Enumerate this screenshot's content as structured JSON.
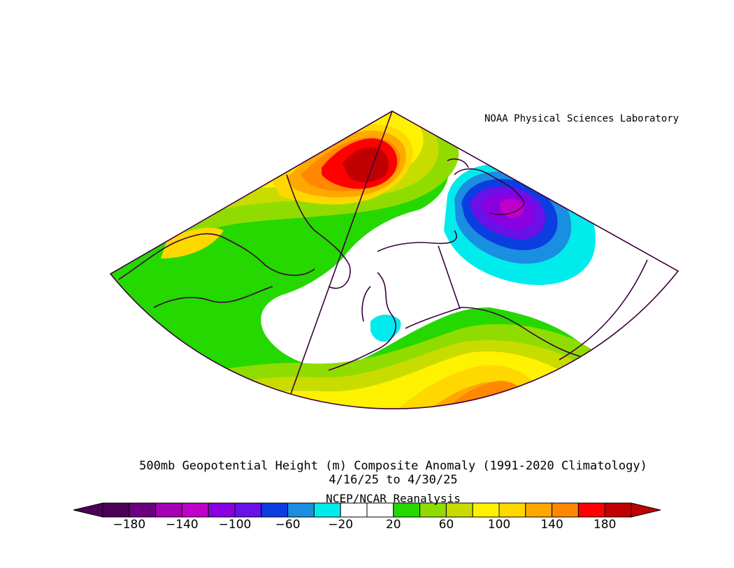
{
  "credit": "NOAA Physical Sciences Laboratory",
  "title": {
    "line1": "500mb Geopotential Height (m) Composite Anomaly (1991-2020 Climatology)",
    "line2": "4/16/25  to 4/30/25"
  },
  "source": "NCEP/NCAR Reanalysis",
  "colorbar": {
    "tick_labels": [
      "-180",
      "-140",
      "-100",
      "-60",
      "-20",
      "20",
      "60",
      "100",
      "140",
      "180"
    ],
    "colors": [
      "#4c0057",
      "#6a0080",
      "#a600b4",
      "#c000c8",
      "#8a00e0",
      "#6a10e8",
      "#0a3ee0",
      "#1a8ee0",
      "#00ecec",
      "#ffffff",
      "#ffffff",
      "#24d800",
      "#90dc00",
      "#c8dc00",
      "#fff200",
      "#ffd800",
      "#ffa800",
      "#ff8800",
      "#ff0000",
      "#c00000"
    ]
  },
  "map": {
    "anomaly_centers": [
      {
        "name": "positive-anomaly-high-north",
        "value": 180
      },
      {
        "name": "negative-anomaly-low-east",
        "value": -120
      },
      {
        "name": "positive-anomaly-high-south",
        "value": 140
      }
    ]
  }
}
